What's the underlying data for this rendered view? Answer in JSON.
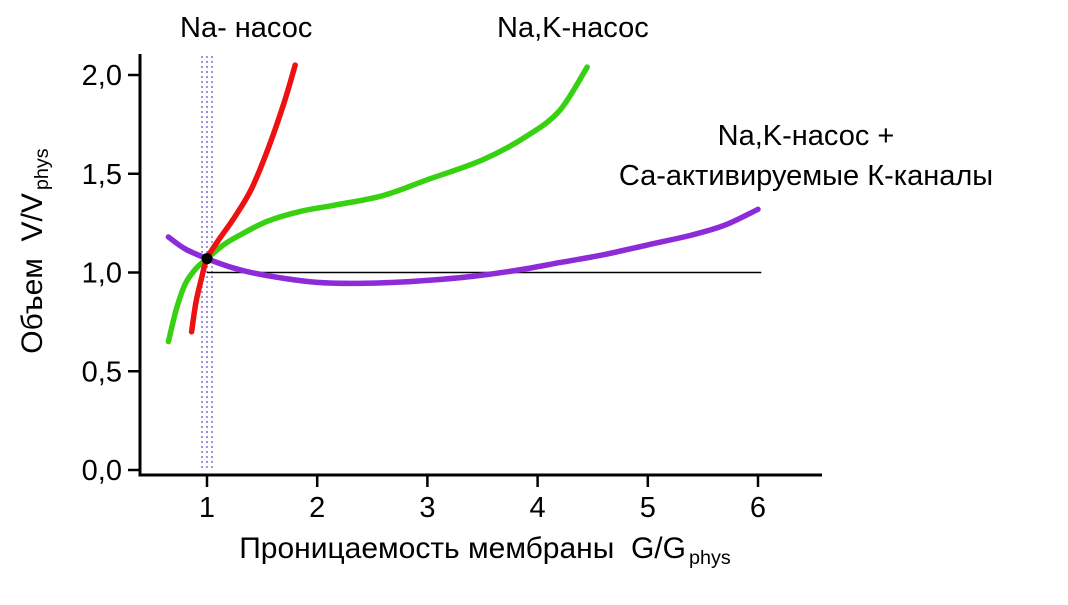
{
  "chart_data": {
    "type": "line",
    "title": "",
    "xlabel": "Проницаемость мембраны  G/G",
    "xlabel_sub": "phys",
    "ylabel": "Объем  V/V",
    "ylabel_sub": "phys",
    "xlim": [
      0.4,
      6.55
    ],
    "ylim": [
      0.0,
      2.12
    ],
    "grid": false,
    "legend_position": "none",
    "xticks": [
      1,
      2,
      3,
      4,
      5,
      6
    ],
    "xtick_labels": [
      "1",
      "2",
      "3",
      "4",
      "5",
      "6"
    ],
    "yticks": [
      0,
      0.5,
      1,
      1.5,
      2
    ],
    "ytick_labels": [
      "0,0",
      "0,5",
      "1,0",
      "1,5",
      "2,0"
    ],
    "reference_line": {
      "y": 1.0,
      "x_start": 1.0,
      "x_end": 6.03,
      "color": "#000000"
    },
    "vertical_band": {
      "x": 1.0,
      "color": "#6a5acd",
      "style": "dotted"
    },
    "intersection_point": {
      "x": 1.0,
      "y": 1.07,
      "color": "#000000"
    },
    "annotations": {
      "red": "Na- насос",
      "green": "Na,K-насос",
      "purple_line1": "Na,K-насос +",
      "purple_line2": "Са-активируемые К-каналы"
    },
    "series": [
      {
        "name": "Na- насос",
        "color": "#ee1111",
        "points": [
          [
            0.86,
            0.7
          ],
          [
            0.9,
            0.85
          ],
          [
            0.95,
            0.97
          ],
          [
            1.0,
            1.07
          ],
          [
            1.1,
            1.16
          ],
          [
            1.25,
            1.28
          ],
          [
            1.4,
            1.42
          ],
          [
            1.55,
            1.62
          ],
          [
            1.7,
            1.86
          ],
          [
            1.8,
            2.05
          ]
        ]
      },
      {
        "name": "Na,K-насос",
        "color": "#38d112",
        "points": [
          [
            0.65,
            0.65
          ],
          [
            0.72,
            0.81
          ],
          [
            0.8,
            0.94
          ],
          [
            0.9,
            1.02
          ],
          [
            1.0,
            1.07
          ],
          [
            1.15,
            1.14
          ],
          [
            1.3,
            1.19
          ],
          [
            1.55,
            1.26
          ],
          [
            1.85,
            1.31
          ],
          [
            2.15,
            1.34
          ],
          [
            2.6,
            1.39
          ],
          [
            3.0,
            1.47
          ],
          [
            3.5,
            1.57
          ],
          [
            3.9,
            1.69
          ],
          [
            4.2,
            1.82
          ],
          [
            4.45,
            2.04
          ]
        ]
      },
      {
        "name": "Na,K-насос + Са-активируемые К-каналы",
        "color": "#8d2bd9",
        "points": [
          [
            0.65,
            1.18
          ],
          [
            0.8,
            1.12
          ],
          [
            1.0,
            1.07
          ],
          [
            1.2,
            1.03
          ],
          [
            1.4,
            1.0
          ],
          [
            1.7,
            0.97
          ],
          [
            2.0,
            0.95
          ],
          [
            2.3,
            0.945
          ],
          [
            2.7,
            0.95
          ],
          [
            3.0,
            0.96
          ],
          [
            3.4,
            0.98
          ],
          [
            3.8,
            1.01
          ],
          [
            4.2,
            1.05
          ],
          [
            4.6,
            1.09
          ],
          [
            5.0,
            1.14
          ],
          [
            5.4,
            1.19
          ],
          [
            5.7,
            1.24
          ],
          [
            6.0,
            1.32
          ]
        ]
      }
    ]
  }
}
